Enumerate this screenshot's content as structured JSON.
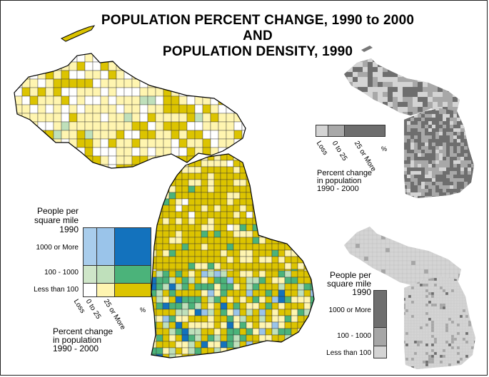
{
  "title": {
    "line1": "POPULATION PERCENT CHANGE, 1990 to 2000",
    "line2": "AND",
    "line3": "POPULATION DENSITY, 1990"
  },
  "main_legend": {
    "density_title": [
      "People per",
      "square mile",
      "1990"
    ],
    "density_classes": [
      "1000 or More",
      "100 - 1000",
      "Less than 100"
    ],
    "change_classes": [
      "Loss",
      "0 to 25",
      "25 or More"
    ],
    "change_unit": "%",
    "change_title": [
      "Percent change",
      "in population",
      "1990 - 2000"
    ],
    "colors": {
      "high_density": [
        "#a9cdec",
        "#9ac4ea",
        "#1372bd"
      ],
      "mid_density": [
        "#cfe6c9",
        "#bfe0bb",
        "#4bb37a"
      ],
      "low_density": [
        "#ffffff",
        "#fff5b0",
        "#dcc400"
      ]
    }
  },
  "change_inset": {
    "classes": [
      "Loss",
      "0 to 25",
      "25 or More"
    ],
    "unit": "%",
    "colors": [
      "#d4d4d4",
      "#a8a8a8",
      "#6e6e6e"
    ],
    "title": [
      "Percent change",
      "in population",
      "1990 - 2000"
    ]
  },
  "density_inset": {
    "title": [
      "People per",
      "square mile",
      "1990"
    ],
    "classes": [
      "1000 or More",
      "100 - 1000",
      "Less than 100"
    ],
    "colors": [
      "#6e6e6e",
      "#a6a6a6",
      "#d4d4d4"
    ]
  }
}
